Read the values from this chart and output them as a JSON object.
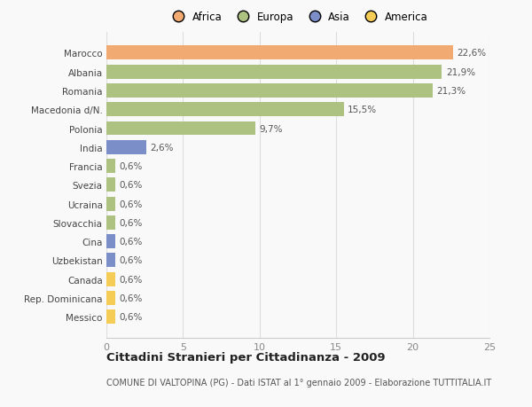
{
  "title": "Cittadini Stranieri per Cittadinanza - 2009",
  "subtitle": "COMUNE DI VALTOPINA (PG) - Dati ISTAT al 1° gennaio 2009 - Elaborazione TUTTITALIA.IT",
  "categories": [
    "Marocco",
    "Albania",
    "Romania",
    "Macedonia d/N.",
    "Polonia",
    "India",
    "Francia",
    "Svezia",
    "Ucraina",
    "Slovacchia",
    "Cina",
    "Uzbekistan",
    "Canada",
    "Rep. Dominicana",
    "Messico"
  ],
  "values": [
    22.6,
    21.9,
    21.3,
    15.5,
    9.7,
    2.6,
    0.6,
    0.6,
    0.6,
    0.6,
    0.6,
    0.6,
    0.6,
    0.6,
    0.6
  ],
  "labels": [
    "22,6%",
    "21,9%",
    "21,3%",
    "15,5%",
    "9,7%",
    "2,6%",
    "0,6%",
    "0,6%",
    "0,6%",
    "0,6%",
    "0,6%",
    "0,6%",
    "0,6%",
    "0,6%",
    "0,6%"
  ],
  "colors": [
    "#f0aa72",
    "#adc180",
    "#adc180",
    "#adc180",
    "#adc180",
    "#7b8ec8",
    "#adc180",
    "#adc180",
    "#adc180",
    "#adc180",
    "#7b8ec8",
    "#7b8ec8",
    "#f5cc55",
    "#f5cc55",
    "#f5cc55"
  ],
  "continents": [
    "Africa",
    "Europa",
    "Asia",
    "America"
  ],
  "legend_colors": [
    "#f0aa72",
    "#adc180",
    "#7b8ec8",
    "#f5cc55"
  ],
  "xlim": [
    0,
    25
  ],
  "xticks": [
    0,
    5,
    10,
    15,
    20,
    25
  ],
  "background_color": "#f9f9f9",
  "plot_bg_color": "#f9f9f9",
  "grid_color": "#dddddd",
  "bar_height": 0.75
}
